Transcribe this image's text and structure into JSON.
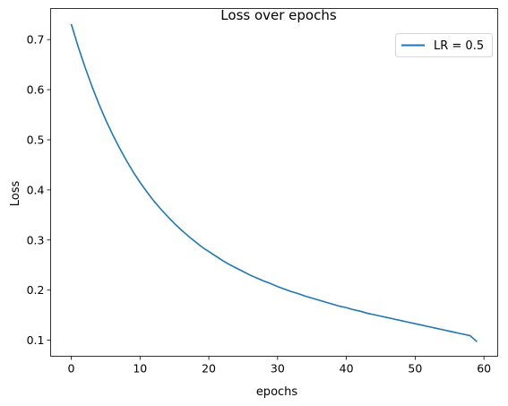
{
  "chart_data": {
    "type": "line",
    "title": "Loss over epochs",
    "xlabel": "epochs",
    "ylabel": "Loss",
    "xlim": [
      -3,
      62
    ],
    "ylim": [
      0.068,
      0.762
    ],
    "xticks": [
      0,
      10,
      20,
      30,
      40,
      50,
      60
    ],
    "yticks": [
      0.1,
      0.2,
      0.3,
      0.4,
      0.5,
      0.6,
      0.7
    ],
    "ytick_labels": [
      "0.1",
      "0.2",
      "0.3",
      "0.4",
      "0.5",
      "0.6",
      "0.7"
    ],
    "grid": false,
    "legend_position": "top-right",
    "series": [
      {
        "name": "LR = 0.5",
        "color": "#1f77b4",
        "x": [
          0,
          1,
          2,
          3,
          4,
          5,
          6,
          7,
          8,
          9,
          10,
          11,
          12,
          13,
          14,
          15,
          16,
          17,
          18,
          19,
          20,
          21,
          22,
          23,
          24,
          25,
          26,
          27,
          28,
          29,
          30,
          31,
          32,
          33,
          34,
          35,
          36,
          37,
          38,
          39,
          40,
          41,
          42,
          43,
          44,
          45,
          46,
          47,
          48,
          49,
          50,
          51,
          52,
          53,
          54,
          55,
          56,
          57,
          58,
          59
        ],
        "y": [
          0.731,
          0.686,
          0.645,
          0.607,
          0.572,
          0.54,
          0.511,
          0.484,
          0.459,
          0.436,
          0.415,
          0.396,
          0.378,
          0.362,
          0.347,
          0.333,
          0.32,
          0.308,
          0.297,
          0.286,
          0.277,
          0.268,
          0.259,
          0.251,
          0.244,
          0.237,
          0.23,
          0.224,
          0.218,
          0.213,
          0.207,
          0.202,
          0.197,
          0.193,
          0.188,
          0.184,
          0.18,
          0.176,
          0.172,
          0.168,
          0.165,
          0.161,
          0.158,
          0.154,
          0.151,
          0.148,
          0.145,
          0.142,
          0.139,
          0.136,
          0.133,
          0.13,
          0.127,
          0.124,
          0.121,
          0.118,
          0.115,
          0.112,
          0.109,
          0.097
        ]
      }
    ]
  }
}
